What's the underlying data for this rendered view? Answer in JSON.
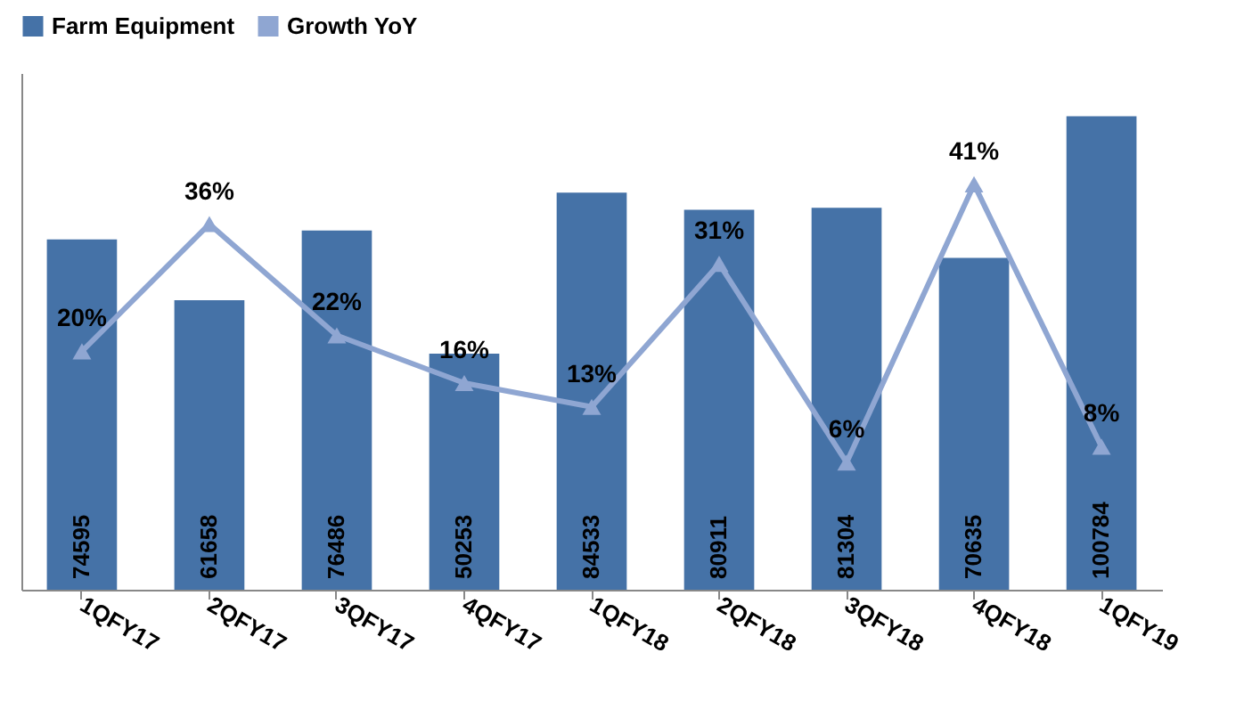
{
  "chart_data": {
    "type": "bar",
    "categories": [
      "1QFY17",
      "2QFY17",
      "3QFY17",
      "4QFY17",
      "1QFY18",
      "2QFY18",
      "3QFY18",
      "4QFY18",
      "1QFY19"
    ],
    "series": [
      {
        "name": "Farm Equipment",
        "color": "#4572a7",
        "values": [
          74595,
          61658,
          76486,
          50253,
          84533,
          80911,
          81304,
          70635,
          100784
        ]
      },
      {
        "name": "Growth YoY",
        "type": "line",
        "axis": "y2",
        "color": "#8fa6d2",
        "marker": "triangle",
        "values": [
          20,
          36,
          22,
          16,
          13,
          31,
          6,
          41,
          8
        ],
        "value_labels": [
          "20%",
          "36%",
          "22%",
          "16%",
          "13%",
          "31%",
          "6%",
          "41%",
          "8%"
        ]
      }
    ],
    "data_labels": true,
    "legend": "top",
    "tick_labels": "x",
    "grid": false
  }
}
